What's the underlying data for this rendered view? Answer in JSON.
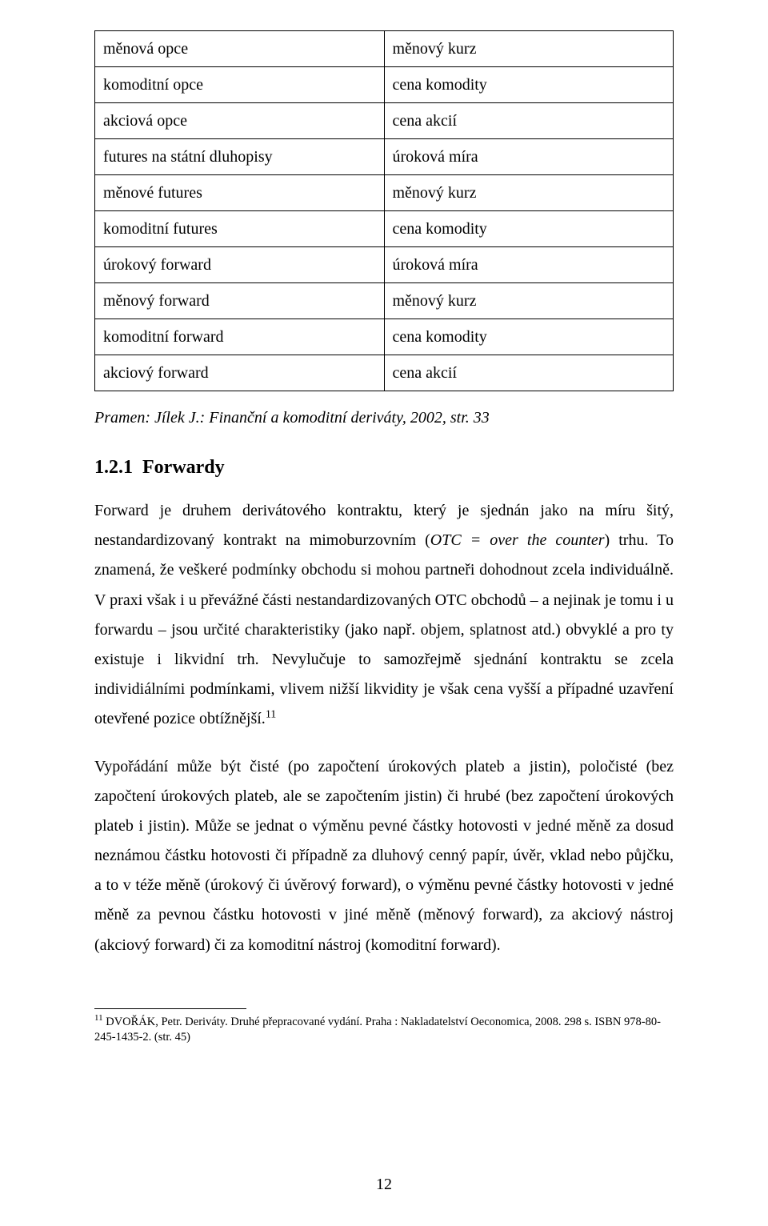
{
  "table": {
    "columns": [
      "left",
      "right"
    ],
    "col_widths_percent": [
      50,
      50
    ],
    "rows": [
      [
        "měnová opce",
        "měnový kurz"
      ],
      [
        "komoditní opce",
        "cena komodity"
      ],
      [
        "akciová opce",
        "cena akcií"
      ],
      [
        "futures na státní dluhopisy",
        "úroková míra"
      ],
      [
        "měnové futures",
        "měnový kurz"
      ],
      [
        "komoditní futures",
        "cena komodity"
      ],
      [
        "úrokový forward",
        "úroková míra"
      ],
      [
        "měnový forward",
        "měnový kurz"
      ],
      [
        "komoditní forward",
        "cena komodity"
      ],
      [
        "akciový forward",
        "cena akcií"
      ]
    ],
    "border_color": "#000000",
    "cell_fontsize": 20
  },
  "citation": "Pramen: Jílek J.: Finanční a komoditní deriváty, 2002, str. 33",
  "heading": {
    "number": "1.2.1",
    "title": "Forwardy"
  },
  "paragraphs": {
    "p1_part1": "Forward je druhem derivátového kontraktu, který je sjednán jako na míru šitý, nestandardizovaný kontrakt na mimoburzovním (",
    "p1_otc": "OTC = over the counter",
    "p1_part2": ") trhu. To znamená, že veškeré podmínky obchodu si mohou partneři dohodnout zcela individuálně. V praxi však i u převážné části nestandardizovaných OTC obchodů – a nejinak je tomu i u forwardu – jsou určité charakteristiky (jako např. objem, splatnost atd.) obvyklé a pro ty existuje i likvidní trh. Nevylučuje to samozřejmě sjednání kontraktu se zcela individiálními podmínkami, vlivem nižší likvidity je však cena vyšší a případné uzavření otevřené pozice obtížnější.",
    "p1_fn_mark": "11",
    "p2": "Vypořádání může být čisté (po započtení úrokových plateb a jistin), poločisté (bez započtení úrokových plateb, ale se započtením jistin) či hrubé (bez započtení úrokových plateb i jistin). Může se jednat o výměnu pevné částky hotovosti v jedné měně za dosud neznámou částku hotovosti či případně za dluhový cenný papír, úvěr, vklad nebo půjčku, a to v téže měně (úrokový či úvěrový forward), o výměnu pevné částky hotovosti v jedné měně za pevnou částku hotovosti v jiné měně (měnový forward), za akciový nástroj (akciový forward) či za komoditní nástroj (komoditní forward)."
  },
  "footnote": {
    "mark": "11",
    "text": " DVOŘÁK, Petr. Deriváty. Druhé přepracované vydání. Praha : Nakladatelství Oeconomica, 2008. 298 s. ISBN 978-80-245-1435-2. (str. 45)"
  },
  "page_number": "12",
  "styles": {
    "background_color": "#ffffff",
    "text_color": "#000000",
    "body_fontsize": 20,
    "body_lineheight": 1.86,
    "heading_fontsize": 24,
    "footnote_fontsize": 14.5,
    "font_family": "Times New Roman"
  }
}
